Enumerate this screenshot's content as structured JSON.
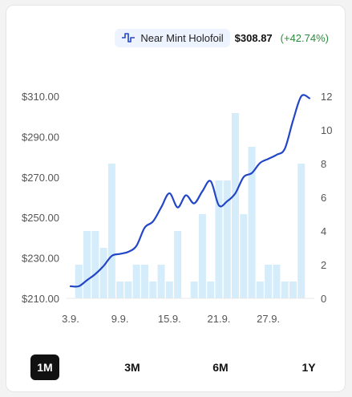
{
  "header": {
    "variant_icon": "pulse-line-icon",
    "variant_label": "Near Mint Holofoil",
    "price": "$308.87",
    "change": "(+42.74%)"
  },
  "colors": {
    "line": "#2346c6",
    "bar": "#d5ecfb",
    "change_positive": "#2e8b3d",
    "active_range_bg": "#111111"
  },
  "range_buttons": [
    {
      "label": "1M",
      "active": true
    },
    {
      "label": "3M",
      "active": false
    },
    {
      "label": "6M",
      "active": false
    },
    {
      "label": "1Y",
      "active": false
    }
  ],
  "chart_data": {
    "type": "line+bar",
    "x_tick_labels": [
      "3.9.",
      "9.9.",
      "15.9.",
      "21.9.",
      "27.9."
    ],
    "left_axis": {
      "ticks": [
        "$310.00",
        "$290.00",
        "$270.00",
        "$250.00",
        "$230.00",
        "$210.00"
      ],
      "ylim": [
        210,
        310
      ]
    },
    "right_axis": {
      "ticks": [
        "12",
        "10",
        "8",
        "6",
        "4",
        "2",
        "0"
      ],
      "ylim": [
        0,
        12
      ]
    },
    "grid": false,
    "x": [
      "3.9.",
      "4.9.",
      "5.9.",
      "6.9.",
      "7.9.",
      "8.9.",
      "9.9.",
      "10.9.",
      "11.9.",
      "12.9.",
      "13.9.",
      "14.9.",
      "15.9.",
      "16.9.",
      "17.9.",
      "18.9.",
      "19.9.",
      "20.9.",
      "21.9.",
      "22.9.",
      "23.9.",
      "24.9.",
      "25.9.",
      "26.9.",
      "27.9.",
      "28.9.",
      "29.9.",
      "30.9.",
      "1.10.",
      "2.10."
    ],
    "series": [
      {
        "axis": "left",
        "kind": "line",
        "values": [
          216,
          216,
          219,
          222,
          226,
          231,
          232,
          233,
          236,
          245,
          248,
          255,
          262,
          255,
          261,
          257,
          263,
          268,
          256,
          258,
          262,
          270,
          272,
          277,
          279,
          281,
          284,
          298,
          310,
          309
        ]
      },
      {
        "axis": "right",
        "kind": "bar",
        "values": [
          0,
          2,
          4,
          4,
          3,
          8,
          1,
          1,
          2,
          2,
          1,
          2,
          1,
          4,
          0,
          1,
          5,
          1,
          7,
          7,
          11,
          5,
          9,
          1,
          2,
          2,
          1,
          1,
          8,
          0
        ]
      }
    ]
  }
}
